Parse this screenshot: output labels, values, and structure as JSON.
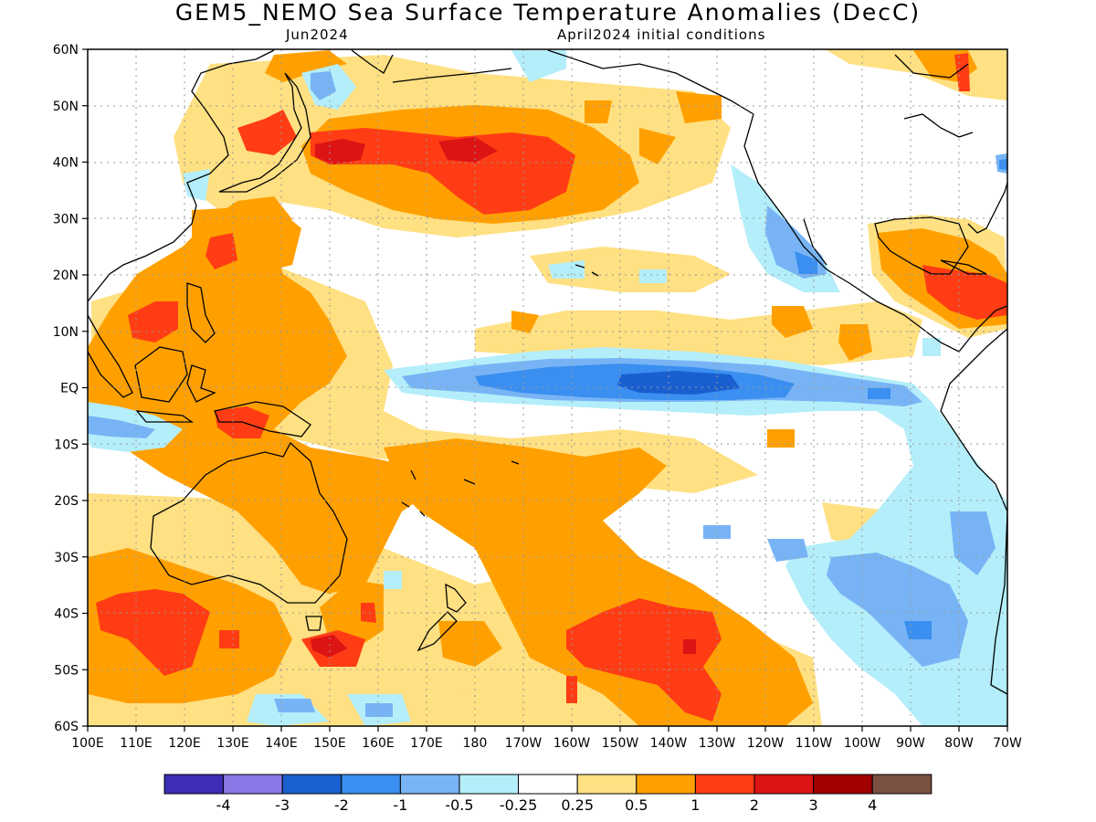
{
  "title": "GEM5_NEMO Sea Surface Temperature Anomalies (DecC)",
  "subtitle_left": "Jun2024",
  "subtitle_right": "April2024 initial conditions",
  "lat_labels": [
    "60N",
    "50N",
    "40N",
    "30N",
    "20N",
    "10N",
    "EQ",
    "10S",
    "20S",
    "30S",
    "40S",
    "50S",
    "60S"
  ],
  "lon_labels": [
    "100E",
    "110E",
    "120E",
    "130E",
    "140E",
    "150E",
    "160E",
    "170E",
    "180",
    "170W",
    "160W",
    "150W",
    "140W",
    "130W",
    "120W",
    "110W",
    "100W",
    "90W",
    "80W",
    "70W"
  ],
  "colorbar": {
    "colors": [
      "#3c2db4",
      "#8a78e6",
      "#1a5fd0",
      "#3a8ff0",
      "#78b4f5",
      "#b4eefa",
      "#ffffff",
      "#ffe082",
      "#ffa000",
      "#ff3c14",
      "#dc1414",
      "#a00000",
      "#7a5040"
    ],
    "labels": [
      "-4",
      "-3",
      "-2",
      "-1",
      "-0.5",
      "-0.25",
      "0.25",
      "0.5",
      "1",
      "2",
      "3",
      "4"
    ]
  }
}
